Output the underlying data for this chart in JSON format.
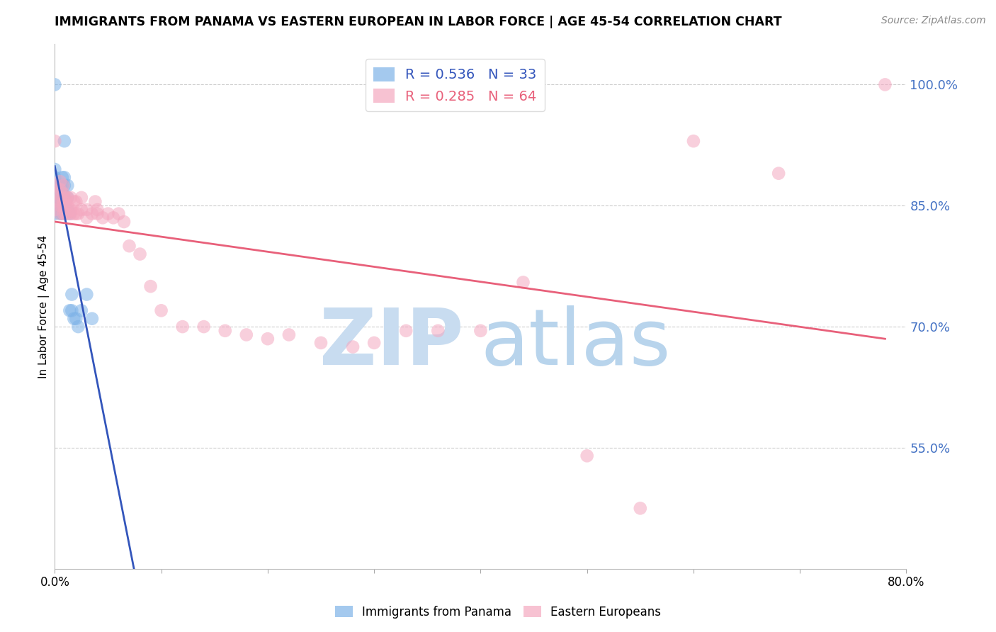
{
  "title": "IMMIGRANTS FROM PANAMA VS EASTERN EUROPEAN IN LABOR FORCE | AGE 45-54 CORRELATION CHART",
  "source": "Source: ZipAtlas.com",
  "ylabel": "In Labor Force | Age 45-54",
  "xmin": 0.0,
  "xmax": 0.8,
  "ymin": 0.4,
  "ymax": 1.05,
  "ytick_right_values": [
    1.0,
    0.85,
    0.7,
    0.55
  ],
  "ytick_right_labels": [
    "100.0%",
    "85.0%",
    "70.0%",
    "55.0%"
  ],
  "right_axis_color": "#4472C4",
  "grid_color": "#cccccc",
  "blue_R": 0.536,
  "blue_N": 33,
  "pink_R": 0.285,
  "pink_N": 64,
  "blue_color": "#7EB3E8",
  "pink_color": "#F4A8C0",
  "blue_line_color": "#3355BB",
  "pink_line_color": "#E8607A",
  "watermark_zip_color": "#C8DCF0",
  "watermark_atlas_color": "#B8D4EC",
  "panama_x": [
    0.0,
    0.0,
    0.0,
    0.0,
    0.0,
    0.0,
    0.0,
    0.005,
    0.005,
    0.005,
    0.005,
    0.007,
    0.007,
    0.007,
    0.007,
    0.007,
    0.009,
    0.009,
    0.009,
    0.009,
    0.012,
    0.012,
    0.012,
    0.014,
    0.014,
    0.016,
    0.016,
    0.018,
    0.02,
    0.022,
    0.025,
    0.03,
    0.035
  ],
  "panama_y": [
    0.84,
    0.855,
    0.865,
    0.875,
    0.885,
    0.895,
    1.0,
    0.84,
    0.85,
    0.86,
    0.875,
    0.84,
    0.855,
    0.865,
    0.875,
    0.885,
    0.86,
    0.875,
    0.885,
    0.93,
    0.845,
    0.86,
    0.875,
    0.72,
    0.84,
    0.72,
    0.74,
    0.71,
    0.71,
    0.7,
    0.72,
    0.74,
    0.71
  ],
  "eastern_x": [
    0.0,
    0.0,
    0.0,
    0.0,
    0.0,
    0.005,
    0.005,
    0.005,
    0.005,
    0.005,
    0.008,
    0.008,
    0.008,
    0.008,
    0.008,
    0.01,
    0.01,
    0.01,
    0.012,
    0.012,
    0.012,
    0.015,
    0.015,
    0.015,
    0.018,
    0.018,
    0.02,
    0.02,
    0.022,
    0.025,
    0.025,
    0.03,
    0.03,
    0.035,
    0.038,
    0.04,
    0.04,
    0.045,
    0.05,
    0.055,
    0.06,
    0.065,
    0.07,
    0.08,
    0.09,
    0.1,
    0.12,
    0.14,
    0.16,
    0.18,
    0.2,
    0.22,
    0.25,
    0.28,
    0.3,
    0.33,
    0.36,
    0.4,
    0.44,
    0.5,
    0.55,
    0.6,
    0.68,
    0.78
  ],
  "eastern_y": [
    0.845,
    0.855,
    0.865,
    0.875,
    0.93,
    0.84,
    0.85,
    0.86,
    0.87,
    0.88,
    0.84,
    0.85,
    0.855,
    0.865,
    0.875,
    0.84,
    0.85,
    0.86,
    0.84,
    0.85,
    0.86,
    0.84,
    0.845,
    0.86,
    0.84,
    0.855,
    0.84,
    0.855,
    0.84,
    0.845,
    0.86,
    0.835,
    0.845,
    0.84,
    0.855,
    0.84,
    0.845,
    0.835,
    0.84,
    0.835,
    0.84,
    0.83,
    0.8,
    0.79,
    0.75,
    0.72,
    0.7,
    0.7,
    0.695,
    0.69,
    0.685,
    0.69,
    0.68,
    0.675,
    0.68,
    0.695,
    0.695,
    0.695,
    0.755,
    0.54,
    0.475,
    0.93,
    0.89,
    1.0
  ]
}
